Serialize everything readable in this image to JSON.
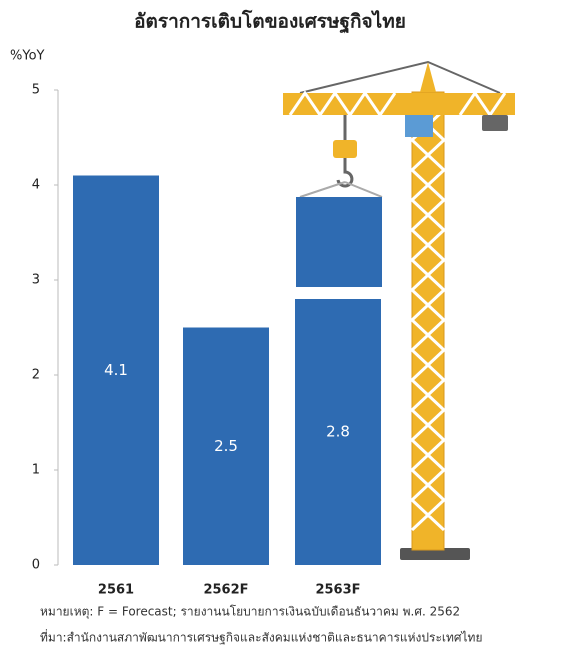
{
  "chart_data": {
    "type": "bar",
    "title": "อัตราการเติบโตของเศรษฐกิจไทย",
    "y_label": "%YoY",
    "categories": [
      "2561",
      "2562F",
      "2563F"
    ],
    "values": [
      4.1,
      2.5,
      2.8
    ],
    "color": "#2e6bb2",
    "ylim": [
      0,
      5
    ],
    "yticks": [
      0,
      1,
      2,
      3,
      4,
      5
    ],
    "note": "หมายเหตุ: F = Forecast; รายงานนโยบายการเงินฉบับเดือนธันวาคม พ.ศ. 2562",
    "source": "ที่มา:สำนักงานสภาพัฒนาการเศรษฐกิจและสังคมแห่งชาติและธนาคารแห่งประเทศไทย"
  }
}
